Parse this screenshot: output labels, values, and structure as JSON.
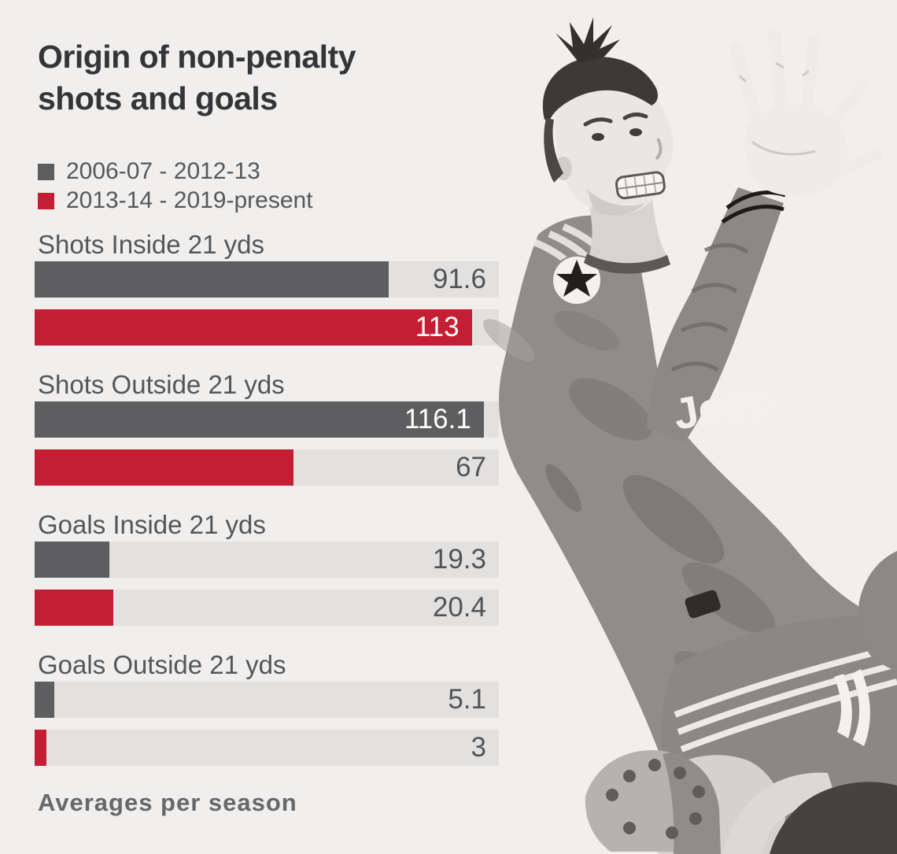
{
  "title": {
    "line1": "Origin of non-penalty",
    "line2": "shots and goals"
  },
  "legend": [
    {
      "label": "2006-07 - 2012-13",
      "color": "#5e5e60"
    },
    {
      "label": "2013-14 - 2019-present",
      "color": "#c41e32"
    }
  ],
  "chart_data": {
    "type": "bar",
    "orientation": "horizontal",
    "title": "Origin of non-penalty shots and goals",
    "value_axis_max": 120,
    "grid": false,
    "legend_position": "top-left",
    "categories": [
      "Shots Inside 21 yds",
      "Shots Outside 21 yds",
      "Goals Inside 21 yds",
      "Goals Outside 21 yds"
    ],
    "series": [
      {
        "name": "2006-07 - 2012-13",
        "color": "#5e5e60",
        "values": [
          91.6,
          116.1,
          19.3,
          5.1
        ],
        "value_labels": [
          "91.6",
          "116.1",
          "19.3",
          "5.1"
        ],
        "label_inside_bar": [
          false,
          true,
          false,
          false
        ]
      },
      {
        "name": "2013-14 - 2019-present",
        "color": "#c41e32",
        "values": [
          113,
          67,
          20.4,
          3
        ],
        "value_labels": [
          "113",
          "67",
          "20.4",
          "3"
        ],
        "label_inside_bar": [
          true,
          false,
          false,
          false
        ]
      }
    ],
    "footnote": "Averages per season"
  },
  "footer": "Averages per season",
  "photo": {
    "jersey_sponsor_text": "Jeep"
  },
  "colors": {
    "background": "#f0efee",
    "bar_track": "#e2e1e0",
    "gray_series": "#5e5e60",
    "red_series": "#c41e32",
    "value_text": "#545356",
    "value_text_inside": "#ffffff",
    "title_text": "#353438",
    "label_text": "#565558"
  }
}
